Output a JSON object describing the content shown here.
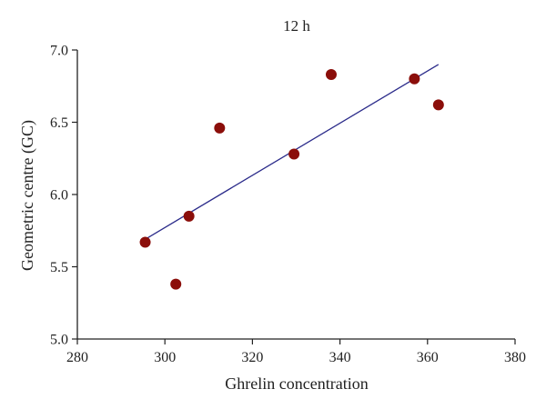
{
  "chart_data": {
    "type": "scatter",
    "title": "12 h",
    "xlabel": "Ghrelin concentration",
    "ylabel": "Geometric centre (GC)",
    "xlim": [
      280,
      380
    ],
    "ylim": [
      5.0,
      7.0
    ],
    "x_ticks": [
      280,
      300,
      320,
      340,
      360,
      380
    ],
    "y_ticks": [
      5.0,
      5.5,
      6.0,
      6.5,
      7.0
    ],
    "x_tick_labels": [
      "280",
      "300",
      "320",
      "340",
      "360",
      "380"
    ],
    "y_tick_labels": [
      "5.0",
      "5.5",
      "6.0",
      "6.5",
      "7.0"
    ],
    "grid": false,
    "points": [
      {
        "x": 295.5,
        "y": 5.67
      },
      {
        "x": 302.5,
        "y": 5.38
      },
      {
        "x": 305.5,
        "y": 5.85
      },
      {
        "x": 312.5,
        "y": 6.46
      },
      {
        "x": 329.5,
        "y": 6.28
      },
      {
        "x": 338.0,
        "y": 6.83
      },
      {
        "x": 357.0,
        "y": 6.8
      },
      {
        "x": 362.5,
        "y": 6.62
      }
    ],
    "trendline": {
      "x": [
        295.5,
        362.5
      ],
      "y": [
        5.69,
        6.9
      ]
    },
    "colors": {
      "points": "#8b0e0a",
      "trendline": "#2b2b8a",
      "axis": "#222222"
    }
  }
}
